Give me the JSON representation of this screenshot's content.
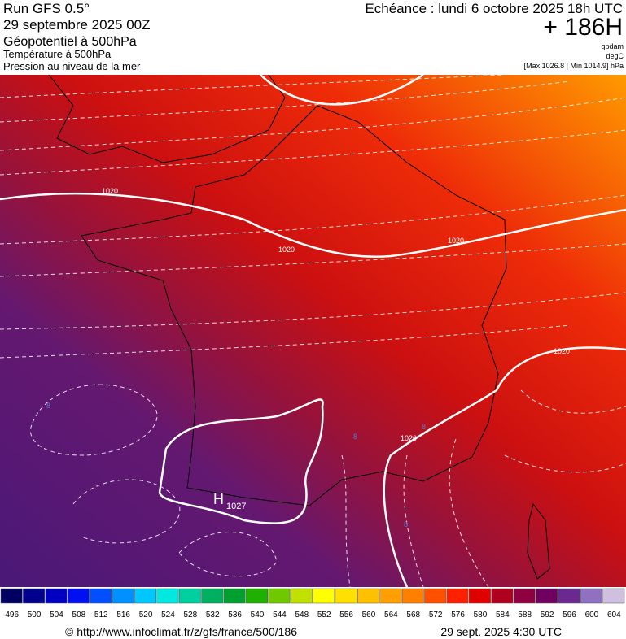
{
  "header": {
    "model": "Run GFS 0.5°",
    "run": "29 septembre 2025 00Z",
    "valid": "Echéance : lundi 6 octobre 2025 18h UTC",
    "lead": "+ 186H",
    "layers": [
      "Géopotentiel à 500hPa",
      "Température à 500hPa",
      "Pression au niveau de la mer"
    ],
    "units": [
      "gpdam",
      "degC",
      "[Max 1026.8 | Min 1014.9] hPa"
    ]
  },
  "map": {
    "isobar_labels": [
      "1020",
      "1020",
      "1020",
      "1020",
      "1020"
    ],
    "high": {
      "symbol": "H",
      "value": "1027"
    },
    "temp_labels": [
      "8",
      "8",
      "8",
      "8"
    ]
  },
  "legend": {
    "values": [
      496,
      500,
      504,
      508,
      512,
      516,
      520,
      524,
      528,
      532,
      536,
      540,
      544,
      548,
      552,
      556,
      560,
      564,
      568,
      572,
      576,
      580,
      584,
      588,
      592,
      596,
      600,
      604
    ],
    "colors": [
      "#000060",
      "#00008c",
      "#0000c0",
      "#0010f0",
      "#0050ff",
      "#0090ff",
      "#00c8ff",
      "#00e8e0",
      "#00d0a0",
      "#00b060",
      "#00a030",
      "#20b000",
      "#70c800",
      "#c0e000",
      "#ffff00",
      "#ffe000",
      "#ffc000",
      "#ffa000",
      "#ff8000",
      "#ff5000",
      "#ff2000",
      "#e00000",
      "#b00020",
      "#900040",
      "#700060",
      "#6a2890",
      "#9070c0",
      "#d0c0e0"
    ]
  },
  "footer": {
    "url": "© http://www.infoclimat.fr/z/gfs/france/500/186",
    "date": "29 sept. 2025  4:30 UTC"
  }
}
